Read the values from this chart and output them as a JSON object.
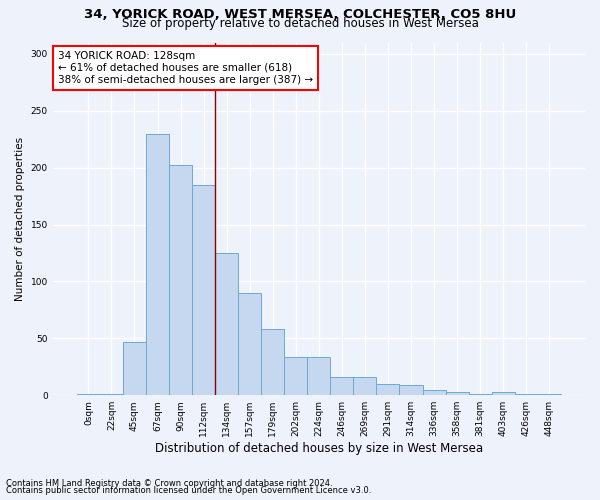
{
  "title_line1": "34, YORICK ROAD, WEST MERSEA, COLCHESTER, CO5 8HU",
  "title_line2": "Size of property relative to detached houses in West Mersea",
  "xlabel": "Distribution of detached houses by size in West Mersea",
  "ylabel": "Number of detached properties",
  "categories": [
    "0sqm",
    "22sqm",
    "45sqm",
    "67sqm",
    "90sqm",
    "112sqm",
    "134sqm",
    "157sqm",
    "179sqm",
    "202sqm",
    "224sqm",
    "246sqm",
    "269sqm",
    "291sqm",
    "314sqm",
    "336sqm",
    "358sqm",
    "381sqm",
    "403sqm",
    "426sqm",
    "448sqm"
  ],
  "values": [
    1,
    1,
    47,
    230,
    202,
    185,
    125,
    90,
    58,
    34,
    34,
    16,
    16,
    10,
    9,
    5,
    3,
    1,
    3,
    1,
    1
  ],
  "bar_color": "#c5d8f0",
  "bar_edge_color": "#6aaad4",
  "vline_x": 5.5,
  "vline_color": "#8b0000",
  "annotation_text": "34 YORICK ROAD: 128sqm\n← 61% of detached houses are smaller (618)\n38% of semi-detached houses are larger (387) →",
  "annotation_box_color": "white",
  "annotation_box_edge": "red",
  "ylim": [
    0,
    310
  ],
  "yticks": [
    0,
    50,
    100,
    150,
    200,
    250,
    300
  ],
  "footer_line1": "Contains HM Land Registry data © Crown copyright and database right 2024.",
  "footer_line2": "Contains public sector information licensed under the Open Government Licence v3.0.",
  "bg_color": "#eef2fa",
  "grid_color": "white",
  "title1_fontsize": 9.5,
  "title2_fontsize": 8.5,
  "xlabel_fontsize": 8.5,
  "ylabel_fontsize": 7.5,
  "tick_fontsize": 6.5,
  "annot_fontsize": 7.5,
  "footer_fontsize": 6.0
}
